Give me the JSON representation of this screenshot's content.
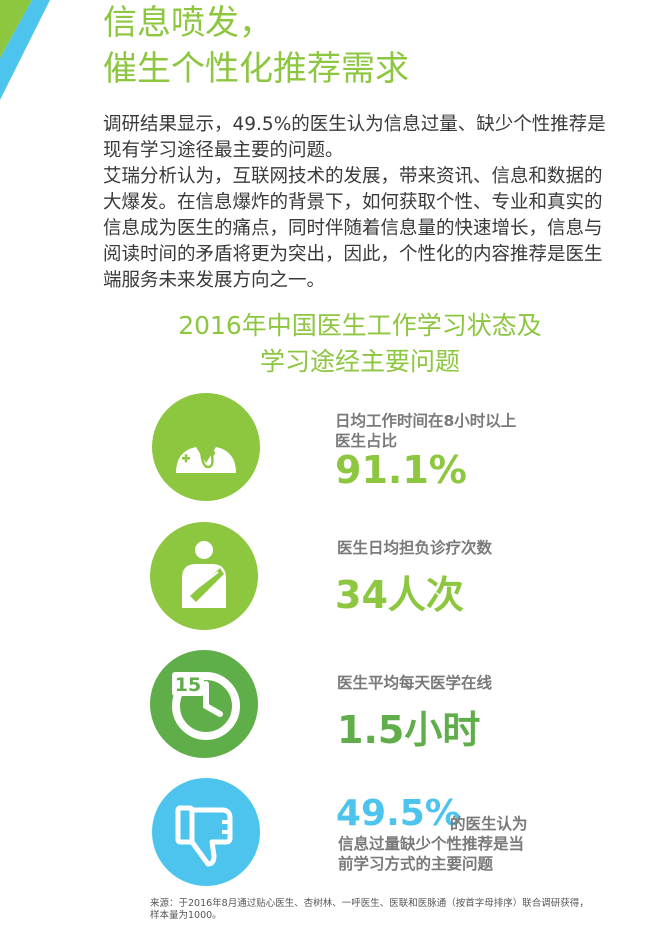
{
  "colors": {
    "accent_green": "#8dc63f",
    "dark_green": "#66b04a",
    "light_green": "#a6d05a",
    "blue": "#4cc4ee",
    "label_gray": "#7a7a7a",
    "text_dark": "#3a3a3a"
  },
  "headline": {
    "line1": "信息喷发，",
    "line2": "催生个性化推荐需求"
  },
  "intro": {
    "para1": "调研结果显示，49.5%的医生认为信息过量、缺少个性推荐是现有学习途径最主要的问题。",
    "para2": "艾瑞分析认为，互联网技术的发展，带来资讯、信息和数据的大爆发。在信息爆炸的背景下，如何获取个性、专业和真实的信息成为医生的痛点，同时伴随着信息量的快速增长，信息与阅读时间的矛盾将更为突出，因此，个性化的内容推荐是医生端服务未来发展方向之一。"
  },
  "section_title": {
    "line1": "2016年中国医生工作学习状态及",
    "line2": "学习途经主要问题"
  },
  "stats": [
    {
      "icon": "doctor-icon",
      "label_line1": "日均工作时间在8小时以上",
      "label_line2": "医生占比",
      "value": "91.1%"
    },
    {
      "icon": "injured-patient-icon",
      "label_line1": "医生日均担负诊疗次数",
      "value": "34人次"
    },
    {
      "icon": "timer-15-icon",
      "label_line1": "医生平均每天医学在线",
      "value": "1.5小时",
      "timer_text": "15"
    },
    {
      "icon": "thumbs-down-icon",
      "value": "49.5%",
      "value_suffix": "的医生认为",
      "desc_line1": "信息过量缺少个性推荐是当",
      "desc_line2": "前学习方式的主要问题"
    }
  ],
  "source": "来源：于2016年8月通过贴心医生、杏树林、一呼医生、医联和医脉通（按首字母排序）联合调研获得，样本量为1000。"
}
